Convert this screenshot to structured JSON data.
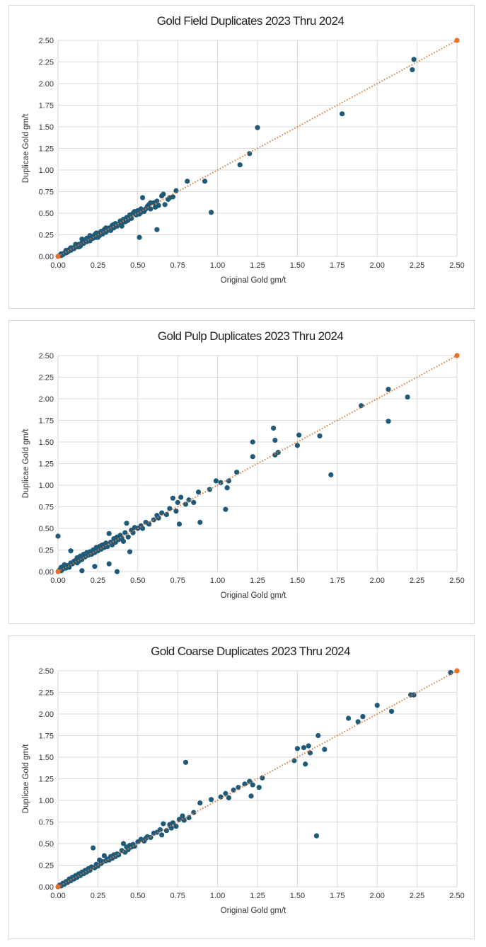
{
  "colors": {
    "points": "#1f5a78",
    "fit_line": "#e07a3a",
    "fit_endpoints": "#e8702a",
    "grid": "#d9d9d9"
  },
  "chart_data": [
    {
      "type": "scatter",
      "title": "Gold Field Duplicates 2023 Thru 2024",
      "xlabel": "Original Gold gm/t",
      "ylabel": "Duplicae Gold gm/t",
      "xlim": [
        0,
        2.5
      ],
      "ylim": [
        0,
        2.5
      ],
      "xticks": [
        "0.00",
        "0.25",
        "0.50",
        "0.75",
        "1.00",
        "1.25",
        "1.50",
        "1.75",
        "2.00",
        "2.25",
        "2.50"
      ],
      "yticks": [
        "0.00",
        "0.25",
        "0.50",
        "0.75",
        "1.00",
        "1.25",
        "1.50",
        "1.75",
        "2.00",
        "2.25",
        "2.50"
      ],
      "grid": true,
      "trendline": [
        [
          0,
          0
        ],
        [
          2.5,
          2.5
        ]
      ],
      "points": [
        [
          0.0,
          0.0
        ],
        [
          0.01,
          0.01
        ],
        [
          0.02,
          0.01
        ],
        [
          0.02,
          0.03
        ],
        [
          0.03,
          0.02
        ],
        [
          0.04,
          0.04
        ],
        [
          0.05,
          0.04
        ],
        [
          0.05,
          0.06
        ],
        [
          0.06,
          0.05
        ],
        [
          0.07,
          0.08
        ],
        [
          0.08,
          0.07
        ],
        [
          0.09,
          0.1
        ],
        [
          0.1,
          0.09
        ],
        [
          0.11,
          0.12
        ],
        [
          0.12,
          0.11
        ],
        [
          0.13,
          0.14
        ],
        [
          0.14,
          0.12
        ],
        [
          0.15,
          0.16
        ],
        [
          0.16,
          0.15
        ],
        [
          0.17,
          0.19
        ],
        [
          0.18,
          0.17
        ],
        [
          0.19,
          0.2
        ],
        [
          0.2,
          0.18
        ],
        [
          0.21,
          0.23
        ],
        [
          0.22,
          0.21
        ],
        [
          0.23,
          0.25
        ],
        [
          0.24,
          0.22
        ],
        [
          0.25,
          0.27
        ],
        [
          0.26,
          0.24
        ],
        [
          0.27,
          0.29
        ],
        [
          0.28,
          0.26
        ],
        [
          0.29,
          0.31
        ],
        [
          0.3,
          0.28
        ],
        [
          0.31,
          0.3
        ],
        [
          0.32,
          0.33
        ],
        [
          0.33,
          0.31
        ],
        [
          0.34,
          0.36
        ],
        [
          0.35,
          0.33
        ],
        [
          0.36,
          0.38
        ],
        [
          0.37,
          0.35
        ],
        [
          0.38,
          0.37
        ],
        [
          0.39,
          0.41
        ],
        [
          0.4,
          0.38
        ],
        [
          0.41,
          0.43
        ],
        [
          0.42,
          0.4
        ],
        [
          0.43,
          0.45
        ],
        [
          0.44,
          0.42
        ],
        [
          0.45,
          0.47
        ],
        [
          0.46,
          0.44
        ],
        [
          0.47,
          0.5
        ],
        [
          0.48,
          0.52
        ],
        [
          0.49,
          0.48
        ],
        [
          0.5,
          0.53
        ],
        [
          0.51,
          0.49
        ],
        [
          0.52,
          0.51
        ],
        [
          0.53,
          0.68
        ],
        [
          0.54,
          0.52
        ],
        [
          0.55,
          0.55
        ],
        [
          0.56,
          0.58
        ],
        [
          0.57,
          0.6
        ],
        [
          0.58,
          0.55
        ],
        [
          0.6,
          0.62
        ],
        [
          0.61,
          0.57
        ],
        [
          0.62,
          0.64
        ],
        [
          0.63,
          0.59
        ],
        [
          0.65,
          0.7
        ],
        [
          0.66,
          0.72
        ],
        [
          0.67,
          0.6
        ],
        [
          0.69,
          0.66
        ],
        [
          0.7,
          0.68
        ],
        [
          0.72,
          0.69
        ],
        [
          0.74,
          0.76
        ],
        [
          0.81,
          0.87
        ],
        [
          0.51,
          0.22
        ],
        [
          0.62,
          0.31
        ],
        [
          0.92,
          0.87
        ],
        [
          0.96,
          0.51
        ],
        [
          1.14,
          1.06
        ],
        [
          1.2,
          1.19
        ],
        [
          1.25,
          1.49
        ],
        [
          1.78,
          1.65
        ],
        [
          2.22,
          2.16
        ],
        [
          2.23,
          2.28
        ],
        [
          0.15,
          0.2
        ],
        [
          0.2,
          0.24
        ],
        [
          0.25,
          0.22
        ],
        [
          0.3,
          0.33
        ],
        [
          0.35,
          0.37
        ],
        [
          0.4,
          0.35
        ],
        [
          0.45,
          0.48
        ],
        [
          0.11,
          0.14
        ],
        [
          0.18,
          0.21
        ],
        [
          0.24,
          0.27
        ],
        [
          0.33,
          0.3
        ],
        [
          0.43,
          0.41
        ],
        [
          0.52,
          0.55
        ],
        [
          0.58,
          0.62
        ],
        [
          0.05,
          0.07
        ],
        [
          0.08,
          0.1
        ],
        [
          0.13,
          0.11
        ]
      ]
    },
    {
      "type": "scatter",
      "title": "Gold Pulp Duplicates 2023 Thru 2024",
      "xlabel": "Original Gold gm/t",
      "ylabel": "Duplicae Gold gm/t",
      "xlim": [
        0,
        2.5
      ],
      "ylim": [
        0,
        2.5
      ],
      "xticks": [
        "0.00",
        "0.25",
        "0.50",
        "0.75",
        "1.00",
        "1.25",
        "1.50",
        "1.75",
        "2.00",
        "2.25",
        "2.50"
      ],
      "yticks": [
        "0.00",
        "0.25",
        "0.50",
        "0.75",
        "1.00",
        "1.25",
        "1.50",
        "1.75",
        "2.00",
        "2.25",
        "2.50"
      ],
      "grid": true,
      "trendline": [
        [
          0,
          0
        ],
        [
          2.5,
          2.5
        ]
      ],
      "points": [
        [
          0.0,
          0.0
        ],
        [
          0.0,
          0.41
        ],
        [
          0.01,
          0.02
        ],
        [
          0.02,
          0.01
        ],
        [
          0.02,
          0.05
        ],
        [
          0.03,
          0.03
        ],
        [
          0.04,
          0.08
        ],
        [
          0.05,
          0.04
        ],
        [
          0.06,
          0.07
        ],
        [
          0.07,
          0.05
        ],
        [
          0.08,
          0.24
        ],
        [
          0.08,
          0.1
        ],
        [
          0.09,
          0.09
        ],
        [
          0.1,
          0.12
        ],
        [
          0.11,
          0.13
        ],
        [
          0.12,
          0.16
        ],
        [
          0.13,
          0.12
        ],
        [
          0.14,
          0.18
        ],
        [
          0.15,
          0.14
        ],
        [
          0.15,
          0.01
        ],
        [
          0.16,
          0.2
        ],
        [
          0.17,
          0.17
        ],
        [
          0.18,
          0.22
        ],
        [
          0.19,
          0.19
        ],
        [
          0.2,
          0.23
        ],
        [
          0.21,
          0.2
        ],
        [
          0.22,
          0.25
        ],
        [
          0.23,
          0.22
        ],
        [
          0.23,
          0.06
        ],
        [
          0.24,
          0.28
        ],
        [
          0.25,
          0.24
        ],
        [
          0.26,
          0.29
        ],
        [
          0.27,
          0.26
        ],
        [
          0.28,
          0.31
        ],
        [
          0.29,
          0.28
        ],
        [
          0.3,
          0.33
        ],
        [
          0.31,
          0.29
        ],
        [
          0.32,
          0.44
        ],
        [
          0.32,
          0.09
        ],
        [
          0.33,
          0.34
        ],
        [
          0.34,
          0.31
        ],
        [
          0.35,
          0.38
        ],
        [
          0.36,
          0.34
        ],
        [
          0.37,
          0.4
        ],
        [
          0.37,
          0.0
        ],
        [
          0.38,
          0.37
        ],
        [
          0.39,
          0.42
        ],
        [
          0.4,
          0.39
        ],
        [
          0.41,
          0.35
        ],
        [
          0.42,
          0.45
        ],
        [
          0.43,
          0.56
        ],
        [
          0.44,
          0.4
        ],
        [
          0.45,
          0.23
        ],
        [
          0.46,
          0.48
        ],
        [
          0.47,
          0.45
        ],
        [
          0.48,
          0.51
        ],
        [
          0.5,
          0.5
        ],
        [
          0.52,
          0.53
        ],
        [
          0.55,
          0.57
        ],
        [
          0.57,
          0.55
        ],
        [
          0.6,
          0.6
        ],
        [
          0.63,
          0.62
        ],
        [
          0.65,
          0.68
        ],
        [
          0.68,
          0.66
        ],
        [
          0.7,
          0.73
        ],
        [
          0.72,
          0.85
        ],
        [
          0.74,
          0.7
        ],
        [
          0.75,
          0.8
        ],
        [
          0.76,
          0.55
        ],
        [
          0.77,
          0.86
        ],
        [
          0.8,
          0.78
        ],
        [
          0.82,
          0.83
        ],
        [
          0.85,
          0.8
        ],
        [
          0.88,
          0.92
        ],
        [
          0.89,
          0.57
        ],
        [
          0.95,
          0.95
        ],
        [
          0.99,
          1.05
        ],
        [
          1.02,
          1.03
        ],
        [
          1.05,
          0.72
        ],
        [
          1.06,
          0.97
        ],
        [
          1.07,
          1.05
        ],
        [
          1.12,
          1.15
        ],
        [
          1.22,
          1.5
        ],
        [
          1.22,
          1.33
        ],
        [
          1.35,
          1.66
        ],
        [
          1.36,
          1.52
        ],
        [
          1.36,
          1.35
        ],
        [
          1.38,
          1.38
        ],
        [
          1.5,
          1.46
        ],
        [
          1.51,
          1.58
        ],
        [
          1.64,
          1.57
        ],
        [
          1.71,
          1.12
        ],
        [
          1.9,
          1.92
        ],
        [
          2.07,
          2.11
        ],
        [
          2.07,
          1.74
        ],
        [
          2.19,
          2.02
        ],
        [
          0.12,
          0.1
        ],
        [
          0.27,
          0.3
        ],
        [
          0.53,
          0.5
        ],
        [
          0.62,
          0.65
        ]
      ]
    },
    {
      "type": "scatter",
      "title": "Gold Coarse Duplicates 2023 Thru 2024",
      "xlabel": "Original Gold gm/t",
      "ylabel": "Duplicae Gold gm/t",
      "xlim": [
        0,
        2.5
      ],
      "ylim": [
        0,
        2.5
      ],
      "xticks": [
        "0.00",
        "0.25",
        "0.50",
        "0.75",
        "1.00",
        "1.25",
        "1.50",
        "1.75",
        "2.00",
        "2.25",
        "2.50"
      ],
      "yticks": [
        "0.00",
        "0.25",
        "0.50",
        "0.75",
        "1.00",
        "1.25",
        "1.50",
        "1.75",
        "2.00",
        "2.25",
        "2.50"
      ],
      "grid": true,
      "trendline": [
        [
          0,
          0
        ],
        [
          2.5,
          2.5
        ]
      ],
      "points": [
        [
          0.0,
          0.0
        ],
        [
          0.01,
          0.02
        ],
        [
          0.02,
          0.01
        ],
        [
          0.03,
          0.04
        ],
        [
          0.04,
          0.03
        ],
        [
          0.05,
          0.06
        ],
        [
          0.06,
          0.05
        ],
        [
          0.07,
          0.09
        ],
        [
          0.08,
          0.07
        ],
        [
          0.09,
          0.11
        ],
        [
          0.1,
          0.09
        ],
        [
          0.11,
          0.13
        ],
        [
          0.12,
          0.11
        ],
        [
          0.13,
          0.15
        ],
        [
          0.14,
          0.13
        ],
        [
          0.15,
          0.17
        ],
        [
          0.16,
          0.15
        ],
        [
          0.17,
          0.19
        ],
        [
          0.18,
          0.17
        ],
        [
          0.19,
          0.21
        ],
        [
          0.2,
          0.19
        ],
        [
          0.21,
          0.23
        ],
        [
          0.22,
          0.45
        ],
        [
          0.23,
          0.22
        ],
        [
          0.24,
          0.26
        ],
        [
          0.25,
          0.24
        ],
        [
          0.26,
          0.31
        ],
        [
          0.27,
          0.27
        ],
        [
          0.28,
          0.29
        ],
        [
          0.29,
          0.36
        ],
        [
          0.3,
          0.3
        ],
        [
          0.31,
          0.32
        ],
        [
          0.32,
          0.31
        ],
        [
          0.33,
          0.35
        ],
        [
          0.34,
          0.33
        ],
        [
          0.35,
          0.37
        ],
        [
          0.36,
          0.35
        ],
        [
          0.37,
          0.38
        ],
        [
          0.38,
          0.37
        ],
        [
          0.4,
          0.42
        ],
        [
          0.41,
          0.5
        ],
        [
          0.42,
          0.4
        ],
        [
          0.43,
          0.46
        ],
        [
          0.44,
          0.43
        ],
        [
          0.45,
          0.48
        ],
        [
          0.46,
          0.46
        ],
        [
          0.47,
          0.49
        ],
        [
          0.48,
          0.47
        ],
        [
          0.5,
          0.52
        ],
        [
          0.52,
          0.55
        ],
        [
          0.54,
          0.53
        ],
        [
          0.56,
          0.58
        ],
        [
          0.58,
          0.57
        ],
        [
          0.6,
          0.62
        ],
        [
          0.62,
          0.63
        ],
        [
          0.64,
          0.66
        ],
        [
          0.66,
          0.73
        ],
        [
          0.68,
          0.65
        ],
        [
          0.7,
          0.72
        ],
        [
          0.72,
          0.74
        ],
        [
          0.74,
          0.7
        ],
        [
          0.76,
          0.78
        ],
        [
          0.78,
          0.82
        ],
        [
          0.79,
          0.77
        ],
        [
          0.8,
          1.44
        ],
        [
          0.82,
          0.8
        ],
        [
          0.85,
          0.86
        ],
        [
          0.89,
          0.97
        ],
        [
          0.96,
          1.01
        ],
        [
          1.02,
          1.04
        ],
        [
          1.05,
          1.08
        ],
        [
          1.07,
          1.03
        ],
        [
          1.1,
          1.12
        ],
        [
          1.13,
          1.15
        ],
        [
          1.17,
          1.19
        ],
        [
          1.2,
          1.22
        ],
        [
          1.21,
          1.05
        ],
        [
          1.22,
          1.18
        ],
        [
          1.26,
          1.15
        ],
        [
          1.28,
          1.26
        ],
        [
          1.48,
          1.46
        ],
        [
          1.5,
          1.6
        ],
        [
          1.54,
          1.61
        ],
        [
          1.55,
          1.42
        ],
        [
          1.57,
          1.63
        ],
        [
          1.58,
          1.55
        ],
        [
          1.62,
          0.59
        ],
        [
          1.63,
          1.75
        ],
        [
          1.67,
          1.59
        ],
        [
          1.82,
          1.95
        ],
        [
          1.88,
          1.91
        ],
        [
          1.91,
          1.97
        ],
        [
          2.0,
          2.1
        ],
        [
          2.09,
          2.03
        ],
        [
          2.21,
          2.22
        ],
        [
          2.23,
          2.22
        ],
        [
          2.46,
          2.48
        ],
        [
          0.65,
          0.6
        ],
        [
          0.71,
          0.68
        ],
        [
          0.55,
          0.56
        ]
      ]
    }
  ]
}
